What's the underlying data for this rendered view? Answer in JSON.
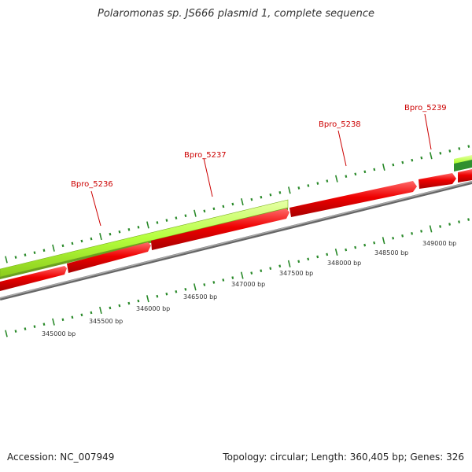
{
  "header": {
    "title": "Polaromonas sp. JS666 plasmid 1, complete sequence"
  },
  "footer": {
    "accession": "Accession: NC_007949",
    "summary": "Topology: circular; Length: 360,405 bp; Genes: 326"
  },
  "genes": [
    {
      "label": "Bpro_5236"
    },
    {
      "label": "Bpro_5237"
    },
    {
      "label": "Bpro_5238"
    },
    {
      "label": "Bpro_5239"
    }
  ],
  "position_labels": [
    "345000 bp",
    "345500 bp",
    "346000 bp",
    "346500 bp",
    "347000 bp",
    "347500 bp",
    "348000 bp",
    "348500 bp",
    "349000 bp"
  ],
  "colors": {
    "forward_feature": "#b4ff3c",
    "forward_feature_dark": "#2f8f2f",
    "gene_arrow": "#ee0000",
    "backbone": "#888888",
    "ticks": "#2a8a2a",
    "gene_label": "#cc0000"
  }
}
